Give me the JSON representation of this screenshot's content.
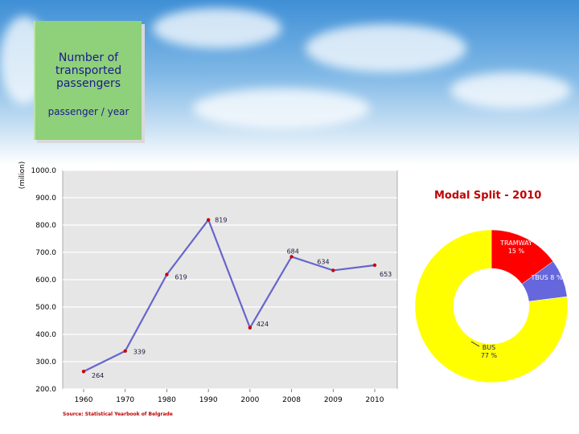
{
  "header": {
    "title": "Number of\ntransported\npassengers",
    "subtitle": "passenger / year"
  },
  "chart_data": [
    {
      "type": "line",
      "ylabel": "(milion)",
      "ylim": [
        200,
        1000
      ],
      "yticks": [
        "1000.0",
        "900.0",
        "800.0",
        "700.0",
        "600.0",
        "500.0",
        "400.0",
        "300.0",
        "200.0"
      ],
      "categories": [
        "1960",
        "1970",
        "1980",
        "1990",
        "2000",
        "2008",
        "2009",
        "2010"
      ],
      "series": [
        {
          "values": [
            264,
            339,
            619,
            819,
            424,
            684,
            634,
            653
          ]
        }
      ],
      "data_labels": [
        "264",
        "339",
        "619",
        "819",
        "424",
        "684",
        "634",
        "653"
      ],
      "grid": true,
      "line_color": "#6666cc",
      "marker_color": "#cc0000",
      "source": "Source: Statistical Yearbook of Belgrade"
    },
    {
      "type": "pie",
      "title": "Modal Split - 2010",
      "donut": true,
      "slices": [
        {
          "label": "TRAMWAY\n15 %",
          "value": 15,
          "color": "#ff0000"
        },
        {
          "label": "TBUS 8 %",
          "value": 8,
          "color": "#6666dd"
        },
        {
          "label": "BUS\n77 %",
          "value": 77,
          "color": "#ffff00"
        }
      ]
    }
  ]
}
